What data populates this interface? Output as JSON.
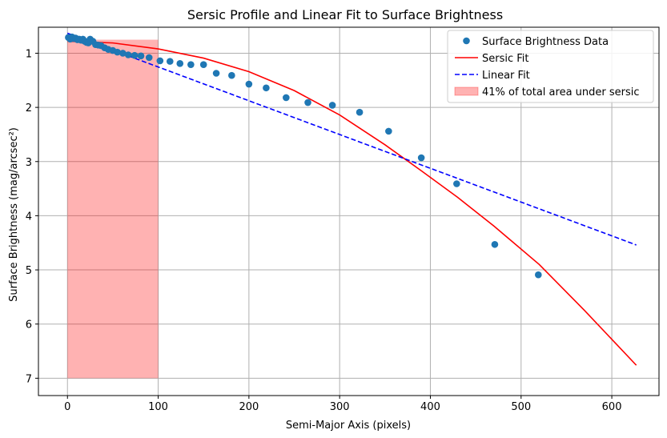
{
  "chart_data": {
    "type": "scatter",
    "title": "Sersic Profile and Linear Fit to Surface Brightness",
    "xlabel": "Semi-Major Axis (pixels)",
    "ylabel": "Surface Brightness (mag/arcsec²)",
    "xlim": [
      -32,
      652
    ],
    "ylim": [
      7.32,
      0.52
    ],
    "y_inverted": true,
    "grid": true,
    "legend_position": "top-right",
    "x_ticks": [
      0,
      100,
      200,
      300,
      400,
      500,
      600
    ],
    "y_ticks": [
      1,
      2,
      3,
      4,
      5,
      6,
      7
    ],
    "series": [
      {
        "name": "Surface Brightness Data",
        "kind": "points",
        "color": "#1f77b4",
        "x": [
          1,
          3,
          5,
          7,
          9,
          11,
          13,
          15,
          17,
          19,
          21,
          23,
          25,
          28,
          31,
          34,
          37,
          41,
          45,
          50,
          55,
          61,
          67,
          74,
          81,
          90,
          102,
          113,
          124,
          136,
          150,
          164,
          181,
          200,
          219,
          241,
          265,
          292,
          322,
          354,
          390,
          429,
          471,
          519
        ],
        "y": [
          0.71,
          0.74,
          0.7,
          0.73,
          0.72,
          0.75,
          0.74,
          0.76,
          0.74,
          0.78,
          0.8,
          0.81,
          0.74,
          0.78,
          0.84,
          0.85,
          0.86,
          0.9,
          0.93,
          0.95,
          0.98,
          1.0,
          1.03,
          1.04,
          1.05,
          1.08,
          1.14,
          1.15,
          1.19,
          1.21,
          1.21,
          1.37,
          1.41,
          1.57,
          1.64,
          1.82,
          1.91,
          1.96,
          2.09,
          2.44,
          2.93,
          3.41,
          4.53,
          5.09
        ]
      },
      {
        "name": "Sersic Fit",
        "kind": "line",
        "color": "#ff0000",
        "dash": "solid",
        "x": [
          0,
          50,
          100,
          150,
          200,
          250,
          300,
          350,
          390,
          430,
          470,
          520,
          570,
          627
        ],
        "y": [
          0.78,
          0.81,
          0.92,
          1.09,
          1.34,
          1.69,
          2.14,
          2.69,
          3.17,
          3.66,
          4.19,
          4.9,
          5.75,
          6.76
        ]
      },
      {
        "name": "Linear Fit",
        "kind": "line",
        "color": "#0000ff",
        "dash": "dashed",
        "x": [
          0,
          627
        ],
        "y": [
          0.63,
          4.54
        ]
      },
      {
        "name": "41% of total area under sersic",
        "kind": "area",
        "color": "#ff0000",
        "x_range": [
          0,
          100
        ],
        "y_range": [
          0.75,
          7.0
        ]
      }
    ]
  }
}
